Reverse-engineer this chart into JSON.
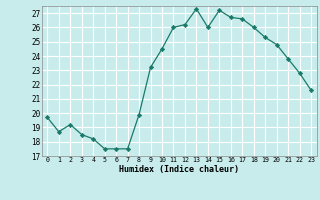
{
  "x": [
    0,
    1,
    2,
    3,
    4,
    5,
    6,
    7,
    8,
    9,
    10,
    11,
    12,
    13,
    14,
    15,
    16,
    17,
    18,
    19,
    20,
    21,
    22,
    23
  ],
  "y": [
    19.7,
    18.7,
    19.2,
    18.5,
    18.2,
    17.5,
    17.5,
    17.5,
    19.9,
    23.2,
    24.5,
    26.0,
    26.2,
    27.3,
    26.0,
    27.2,
    26.7,
    26.6,
    26.0,
    25.3,
    24.8,
    23.8,
    22.8,
    21.6
  ],
  "xlabel": "Humidex (Indice chaleur)",
  "bg_color": "#c8ecec",
  "line_color": "#1a7a6a",
  "marker_color": "#1a7a6a",
  "grid_color": "#ffffff",
  "ylim": [
    17,
    27.5
  ],
  "yticks": [
    17,
    18,
    19,
    20,
    21,
    22,
    23,
    24,
    25,
    26,
    27
  ],
  "xticks": [
    0,
    1,
    2,
    3,
    4,
    5,
    6,
    7,
    8,
    9,
    10,
    11,
    12,
    13,
    14,
    15,
    16,
    17,
    18,
    19,
    20,
    21,
    22,
    23
  ]
}
